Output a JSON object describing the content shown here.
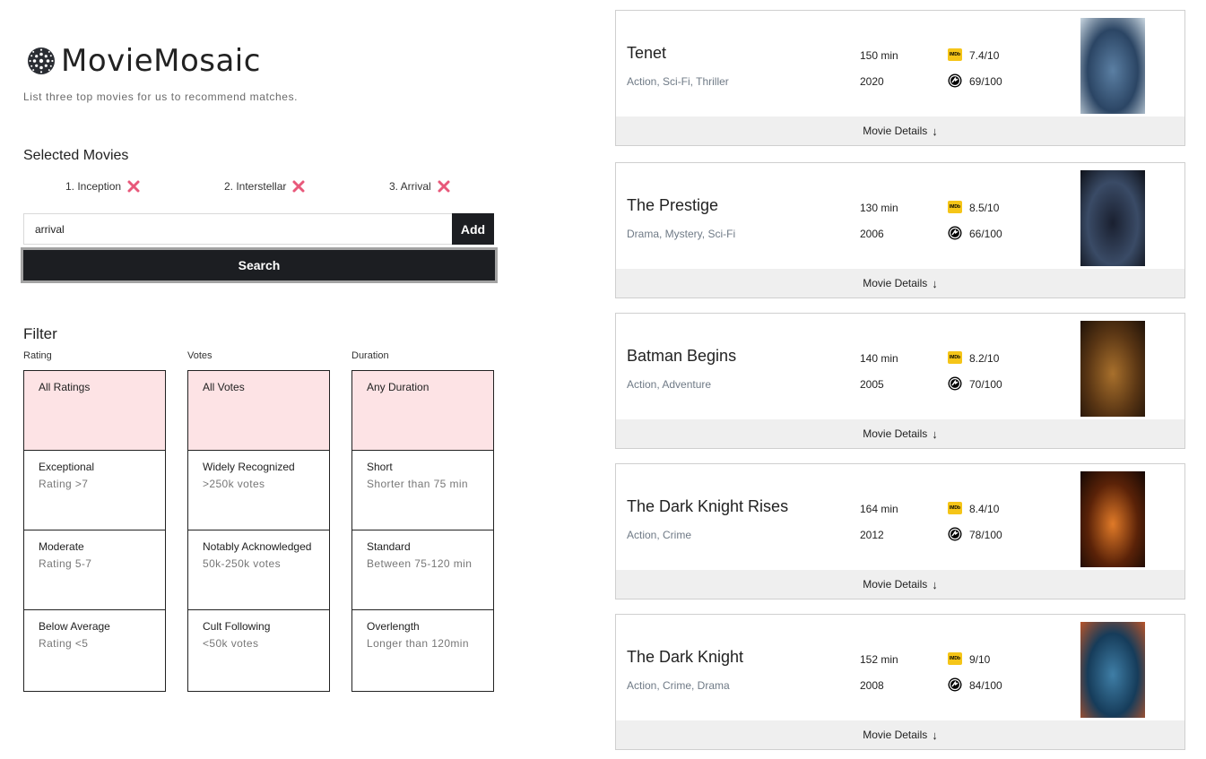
{
  "app": {
    "name": "MovieMosaic",
    "tagline": "List three top movies for us to recommend matches."
  },
  "selected": {
    "title": "Selected Movies",
    "items": [
      {
        "label": "1. Inception"
      },
      {
        "label": "2. Interstellar"
      },
      {
        "label": "3. Arrival"
      }
    ]
  },
  "search": {
    "value": "arrival",
    "add_label": "Add",
    "search_label": "Search"
  },
  "filter": {
    "title": "Filter",
    "columns": [
      {
        "label": "Rating",
        "options": [
          {
            "name": "All Ratings",
            "desc": "",
            "active": true
          },
          {
            "name": "Exceptional",
            "desc": "Rating >7"
          },
          {
            "name": "Moderate",
            "desc": "Rating 5-7"
          },
          {
            "name": "Below Average",
            "desc": "Rating <5"
          }
        ]
      },
      {
        "label": "Votes",
        "options": [
          {
            "name": "All Votes",
            "desc": "",
            "active": true
          },
          {
            "name": "Widely Recognized",
            "desc": ">250k votes"
          },
          {
            "name": "Notably Acknowledged",
            "desc": "50k-250k votes"
          },
          {
            "name": "Cult Following",
            "desc": "<50k votes"
          }
        ]
      },
      {
        "label": "Duration",
        "options": [
          {
            "name": "Any Duration",
            "desc": "",
            "active": true
          },
          {
            "name": "Short",
            "desc": "Shorter than 75 min"
          },
          {
            "name": "Standard",
            "desc": "Between 75-120 min"
          },
          {
            "name": "Overlength",
            "desc": "Longer than 120min"
          }
        ]
      }
    ]
  },
  "results": {
    "details_label": "Movie Details",
    "imdb_badge": "IMDb",
    "movies": [
      {
        "title": "Tenet",
        "genres": "Action, Sci-Fi, Thriller",
        "duration": "150 min",
        "year": "2020",
        "imdb": "7.4/10",
        "meta": "69/100",
        "poster_colors": [
          "#5b7fa3",
          "#2b4564",
          "#c9d6e0"
        ]
      },
      {
        "title": "The Prestige",
        "genres": "Drama, Mystery, Sci-Fi",
        "duration": "130 min",
        "year": "2006",
        "imdb": "8.5/10",
        "meta": "66/100",
        "poster_colors": [
          "#1a2030",
          "#3a4b66",
          "#0e1119"
        ]
      },
      {
        "title": "Batman Begins",
        "genres": "Action, Adventure",
        "duration": "140 min",
        "year": "2005",
        "imdb": "8.2/10",
        "meta": "70/100",
        "poster_colors": [
          "#a8702c",
          "#5a3614",
          "#1f1208"
        ]
      },
      {
        "title": "The Dark Knight Rises",
        "genres": "Action, Crime",
        "duration": "164 min",
        "year": "2012",
        "imdb": "8.4/10",
        "meta": "78/100",
        "poster_colors": [
          "#e07a28",
          "#5a2208",
          "#140804"
        ]
      },
      {
        "title": "The Dark Knight",
        "genres": "Action, Crime, Drama",
        "duration": "152 min",
        "year": "2008",
        "imdb": "9/10",
        "meta": "84/100",
        "poster_colors": [
          "#3f7ea6",
          "#163c5a",
          "#b8542a"
        ]
      }
    ]
  }
}
